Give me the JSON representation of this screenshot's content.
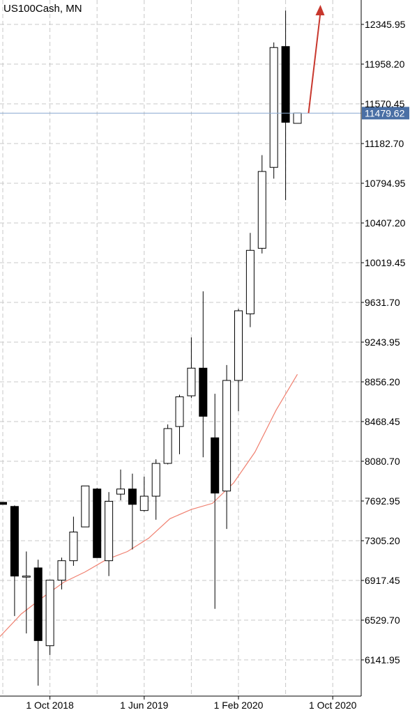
{
  "chart_data": {
    "type": "candlestick",
    "title": "US100Cash, MN",
    "xlabel": "",
    "ylabel": "",
    "ylim": [
      5850.0,
      12500.0
    ],
    "y_ticks": [
      "12345.95",
      "11958.20",
      "11570.45",
      "11182.70",
      "10794.95",
      "10407.20",
      "10019.45",
      "9631.70",
      "9243.95",
      "8856.20",
      "8468.45",
      "8080.70",
      "7692.95",
      "7305.20",
      "6917.45",
      "6529.70",
      "6141.95"
    ],
    "x_ticks": [
      "1 Oct 2018",
      "1 Jun 2019",
      "1 Feb 2020",
      "1 Oct 2020"
    ],
    "current_price": "11479.62",
    "grid": true,
    "candles": [
      {
        "open": 7680,
        "high": 7680,
        "low": 7660,
        "close": 7660
      },
      {
        "open": 7640,
        "high": 7650,
        "low": 6570,
        "close": 6960
      },
      {
        "open": 6960,
        "high": 7200,
        "low": 6400,
        "close": 6960
      },
      {
        "open": 7040,
        "high": 7120,
        "low": 5890,
        "close": 6330
      },
      {
        "open": 6280,
        "high": 6920,
        "low": 6190,
        "close": 6920
      },
      {
        "open": 6920,
        "high": 7140,
        "low": 6830,
        "close": 7110
      },
      {
        "open": 7110,
        "high": 7540,
        "low": 7060,
        "close": 7390
      },
      {
        "open": 7440,
        "high": 7840,
        "low": 7440,
        "close": 7840
      },
      {
        "open": 7810,
        "high": 7820,
        "low": 7140,
        "close": 7140
      },
      {
        "open": 7110,
        "high": 7780,
        "low": 6960,
        "close": 7690
      },
      {
        "open": 7760,
        "high": 8000,
        "low": 7700,
        "close": 7810
      },
      {
        "open": 7810,
        "high": 7960,
        "low": 7220,
        "close": 7660
      },
      {
        "open": 7600,
        "high": 7930,
        "low": 7590,
        "close": 7740
      },
      {
        "open": 7740,
        "high": 8100,
        "low": 7510,
        "close": 8060
      },
      {
        "open": 8060,
        "high": 8440,
        "low": 8050,
        "close": 8400
      },
      {
        "open": 8420,
        "high": 8730,
        "low": 8150,
        "close": 8710
      },
      {
        "open": 8720,
        "high": 9290,
        "low": 8700,
        "close": 8990
      },
      {
        "open": 8990,
        "high": 9740,
        "low": 8120,
        "close": 8520
      },
      {
        "open": 8310,
        "high": 8740,
        "low": 6640,
        "close": 7770
      },
      {
        "open": 7790,
        "high": 9020,
        "low": 7420,
        "close": 8870
      },
      {
        "open": 8870,
        "high": 9570,
        "low": 8570,
        "close": 9550
      },
      {
        "open": 9520,
        "high": 10310,
        "low": 9390,
        "close": 10140
      },
      {
        "open": 10160,
        "high": 11070,
        "low": 10110,
        "close": 10910
      },
      {
        "open": 10950,
        "high": 12170,
        "low": 10840,
        "close": 12120
      },
      {
        "open": 12130,
        "high": 12480,
        "low": 10630,
        "close": 11390
      },
      {
        "open": 11380,
        "high": 11480,
        "low": 11380,
        "close": 11480
      }
    ],
    "moving_average": [
      6370,
      6590,
      6750,
      6900,
      7000,
      7120,
      7200,
      7330,
      7520,
      7610,
      7670,
      7870,
      8170,
      8580,
      8930
    ],
    "annotations": [
      {
        "type": "arrow",
        "color": "#c8372d"
      }
    ],
    "colors": {
      "bull_body": "#ffffff",
      "bear_body": "#000000",
      "wick": "#000000",
      "moving_average": "#f08070",
      "current_price_line": "#8aaad0",
      "current_price_label_bg": "#4a6fa5",
      "current_price_label_text": "#ffffff",
      "arrow": "#c8372d",
      "grid": "#c8c8c8",
      "axis": "#000000"
    }
  }
}
